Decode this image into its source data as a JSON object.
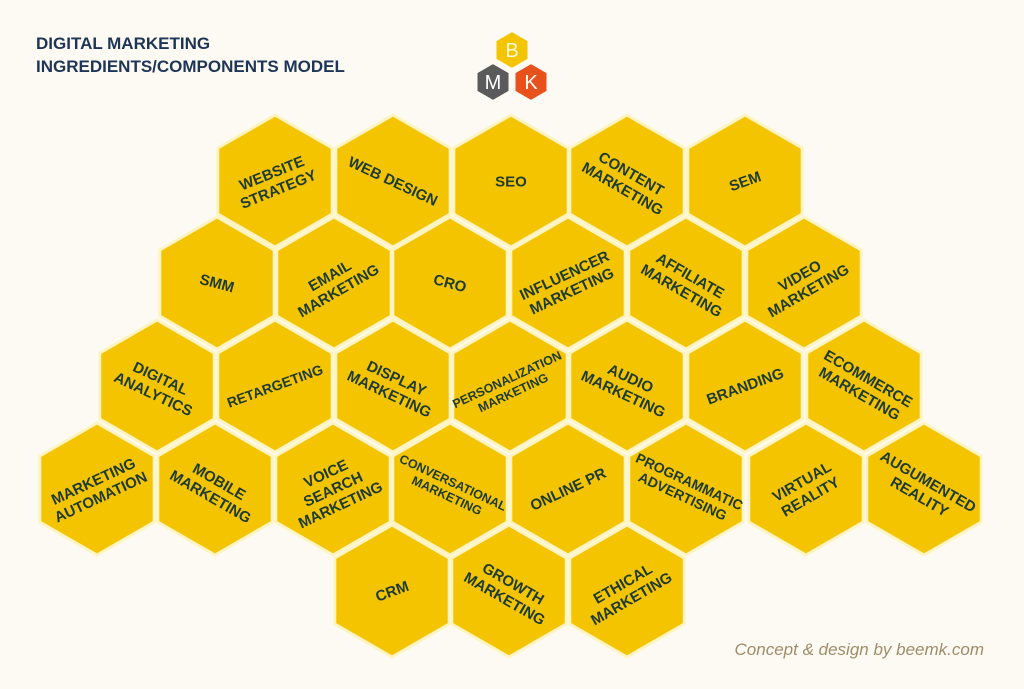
{
  "title": {
    "line1": "DIGITAL MARKETING",
    "line2": "INGREDIENTS/COMPONENTS MODEL"
  },
  "logo": {
    "letters": [
      "B",
      "M",
      "K"
    ],
    "colors": [
      "#f5c400",
      "#5a5a5a",
      "#e8501c"
    ]
  },
  "colors": {
    "hex_fill": "#f5c400",
    "hex_border": "#fff4c2",
    "label": "#1d3b33"
  },
  "hexagons": [
    {
      "label": [
        "WEBSITE",
        "STRATEGY"
      ],
      "rot": -22
    },
    {
      "label": [
        "WEB DESIGN"
      ],
      "rot": 25
    },
    {
      "label": [
        "SEO"
      ],
      "rot": 0
    },
    {
      "label": [
        "CONTENT",
        "MARKETING"
      ],
      "rot": 30
    },
    {
      "label": [
        "SEM"
      ],
      "rot": -20
    },
    {
      "label": [
        "SMM"
      ],
      "rot": 15
    },
    {
      "label": [
        "EMAIL",
        "MARKETING"
      ],
      "rot": -30
    },
    {
      "label": [
        "CRO"
      ],
      "rot": 15
    },
    {
      "label": [
        "INFLUENCER",
        "MARKETING"
      ],
      "rot": -25
    },
    {
      "label": [
        "AFFILIATE",
        "MARKETING"
      ],
      "rot": 30
    },
    {
      "label": [
        "VIDEO",
        "MARKETING"
      ],
      "rot": -30
    },
    {
      "label": [
        "DIGITAL",
        "ANALYTICS"
      ],
      "rot": 25
    },
    {
      "label": [
        "RETARGETING"
      ],
      "rot": -20
    },
    {
      "label": [
        "DISPLAY",
        "MARKETING"
      ],
      "rot": 25
    },
    {
      "label": [
        "PERSONALIZATION",
        "MARKETING"
      ],
      "rot": -25
    },
    {
      "label": [
        "AUDIO",
        "MARKETING"
      ],
      "rot": 25
    },
    {
      "label": [
        "BRANDING"
      ],
      "rot": -20
    },
    {
      "label": [
        "ECOMMERCE",
        "MARKETING"
      ],
      "rot": 30
    },
    {
      "label": [
        "MARKETING",
        "AUTOMATION"
      ],
      "rot": -25
    },
    {
      "label": [
        "MOBILE",
        "MARKETING"
      ],
      "rot": 30
    },
    {
      "label": [
        "VOICE",
        "SEARCH",
        "MARKETING"
      ],
      "rot": -25
    },
    {
      "label": [
        "CONVERSATIONAL",
        "MARKETING"
      ],
      "rot": 25
    },
    {
      "label": [
        "ONLINE PR"
      ],
      "rot": -25
    },
    {
      "label": [
        "PROGRAMMATIC",
        "ADVERTISING"
      ],
      "rot": 25
    },
    {
      "label": [
        "VIRTUAL",
        "REALITY"
      ],
      "rot": -30
    },
    {
      "label": [
        "AUGUMENTED",
        "REALITY"
      ],
      "rot": 30
    },
    {
      "label": [
        "CRM"
      ],
      "rot": -20
    },
    {
      "label": [
        "GROWTH",
        "MARKETING"
      ],
      "rot": 30
    },
    {
      "label": [
        "ETHICAL",
        "MARKETING"
      ],
      "rot": -30
    }
  ],
  "credit": "Concept & design by beemk.com"
}
